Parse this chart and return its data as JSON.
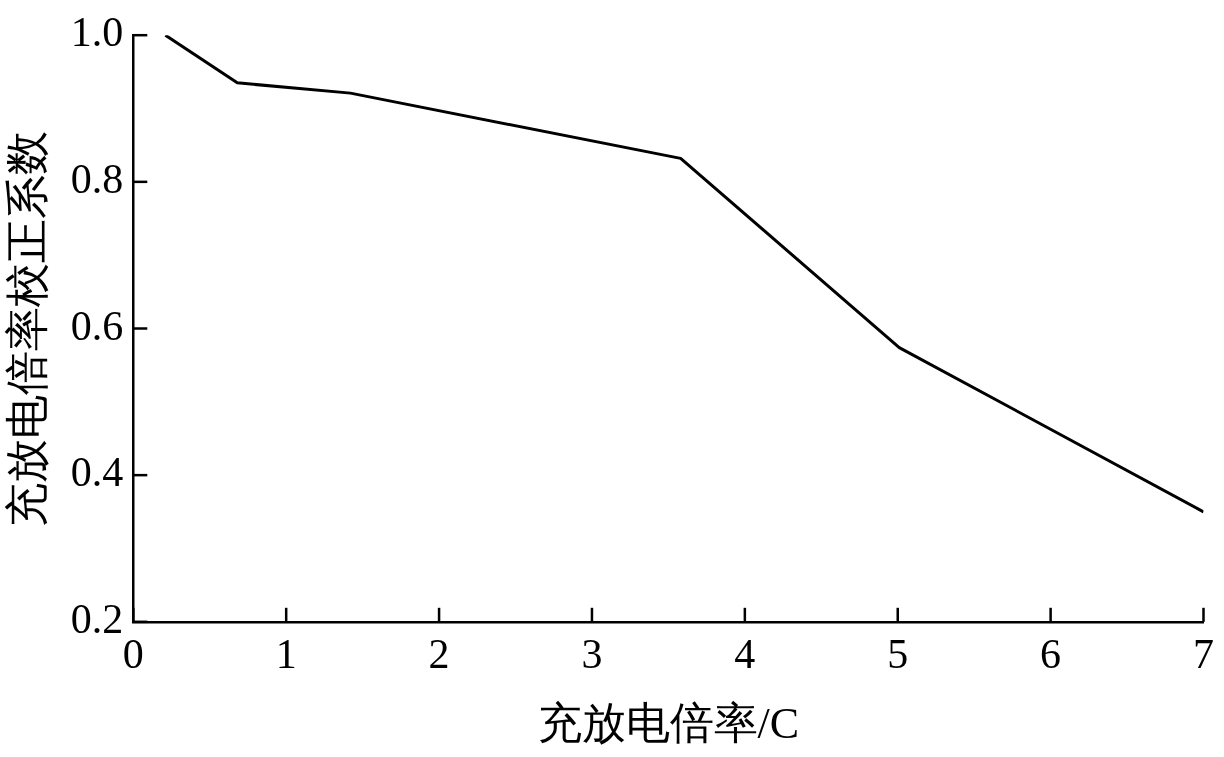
{
  "chart_data": {
    "type": "line",
    "xlabel": "充放电倍率/C",
    "ylabel": "充放电倍率校正系数",
    "x": [
      0.21,
      0.68,
      1.42,
      3.58,
      5.01,
      7.0
    ],
    "series": [
      {
        "color": "#000000",
        "values": [
          1.0,
          0.935,
          0.921,
          0.832,
          0.574,
          0.35
        ]
      }
    ],
    "xlim": [
      0,
      7
    ],
    "xticks": [
      0,
      1,
      2,
      3,
      4,
      5,
      6,
      7
    ],
    "ylim": [
      0.2,
      1.0
    ],
    "yticks": [
      0.2,
      0.4,
      0.6,
      0.8,
      {
        "value": 1.0,
        "label": "1.0"
      }
    ],
    "grid": false,
    "legend": false,
    "marker": "none",
    "line_style": "solid"
  }
}
